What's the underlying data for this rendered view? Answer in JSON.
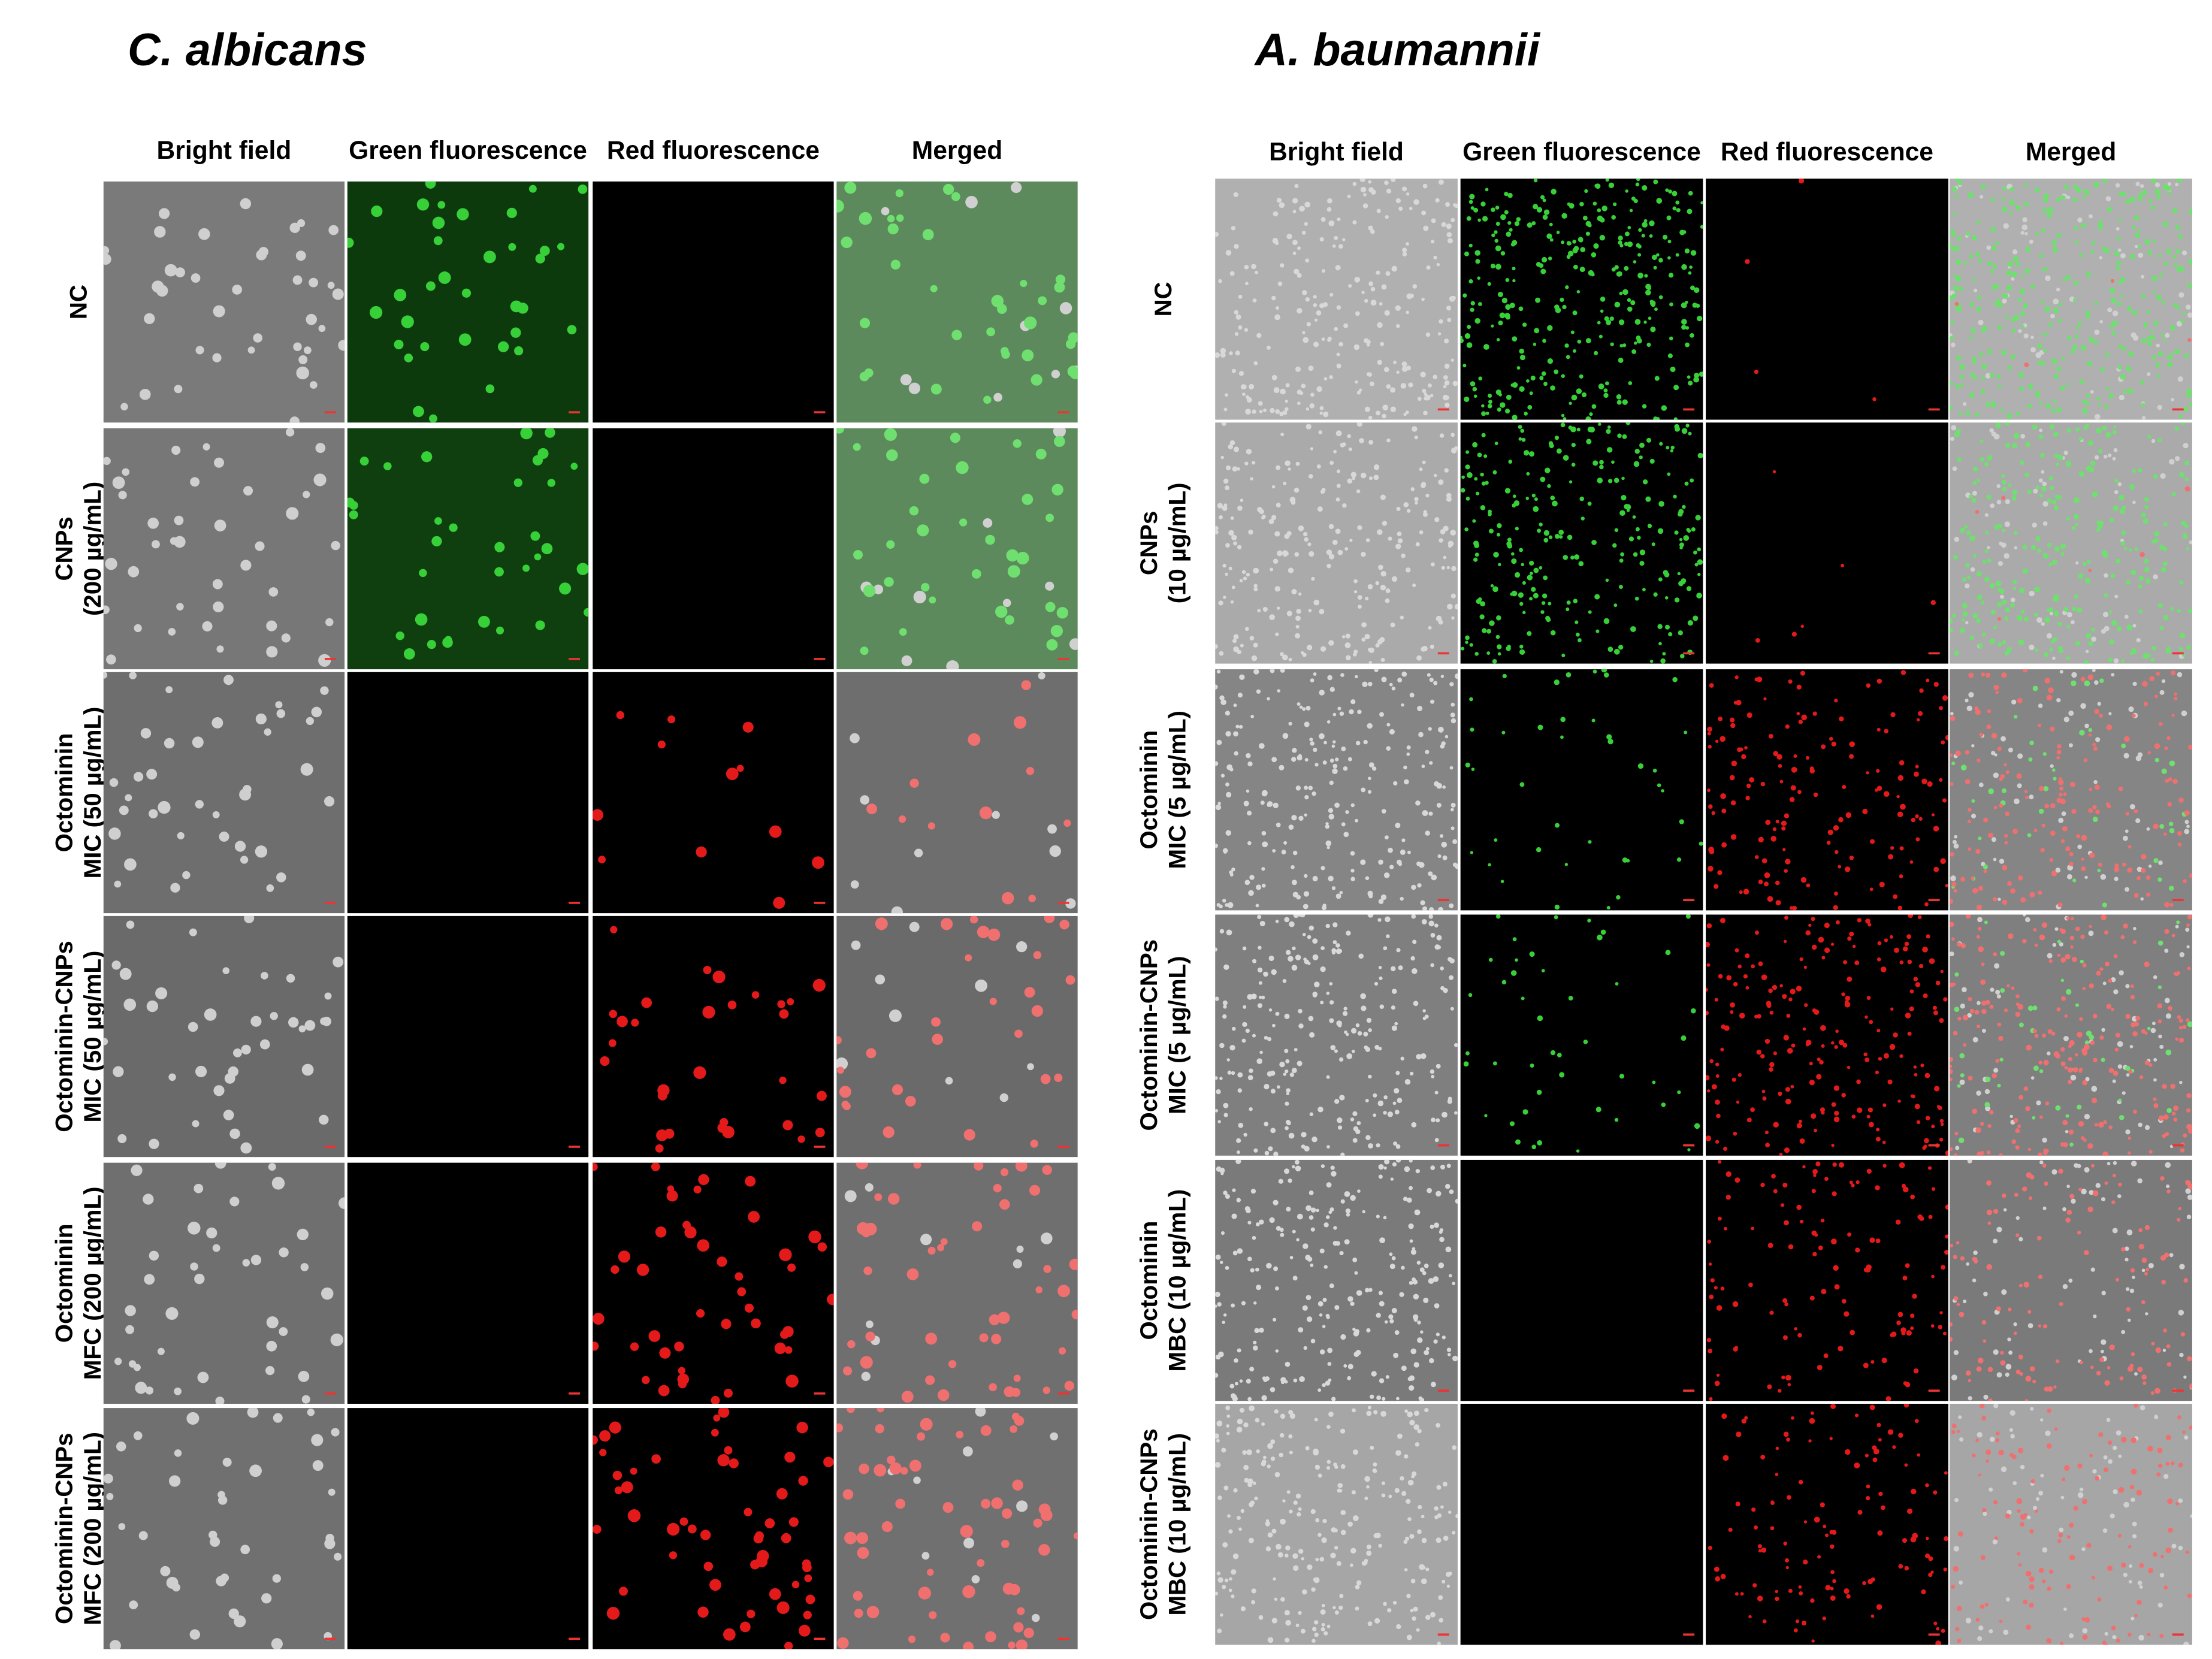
{
  "panels": [
    {
      "title": "C. albicans",
      "columns": [
        "Bright field",
        "Green fluorescence",
        "Red fluorescence",
        "Merged"
      ],
      "rows": [
        [
          "NC"
        ],
        [
          "CNPs",
          "(200 µg/mL)"
        ],
        [
          "Octominin",
          "MIC (50 µg/mL)"
        ],
        [
          "Octominin-CNPs",
          "MIC (50 µg/mL)"
        ],
        [
          "Octominin",
          "MFC (200 µg/mL)"
        ],
        [
          "Octominin-CNPs",
          "MFC (200 µg/mL)"
        ]
      ]
    },
    {
      "title": "A. baumannii",
      "columns": [
        "Bright field",
        "Green fluorescence",
        "Red fluorescence",
        "Merged"
      ],
      "rows": [
        [
          "NC"
        ],
        [
          "CNPs",
          "(10 µg/mL)"
        ],
        [
          "Octominin",
          "MIC (5 µg/mL)"
        ],
        [
          "Octominin-CNPs",
          "MIC (5 µg/mL)"
        ],
        [
          "Octominin",
          "MBC (10 µg/mL)"
        ],
        [
          "Octominin-CNPs",
          "MBC (10 µg/mL)"
        ]
      ]
    }
  ]
}
